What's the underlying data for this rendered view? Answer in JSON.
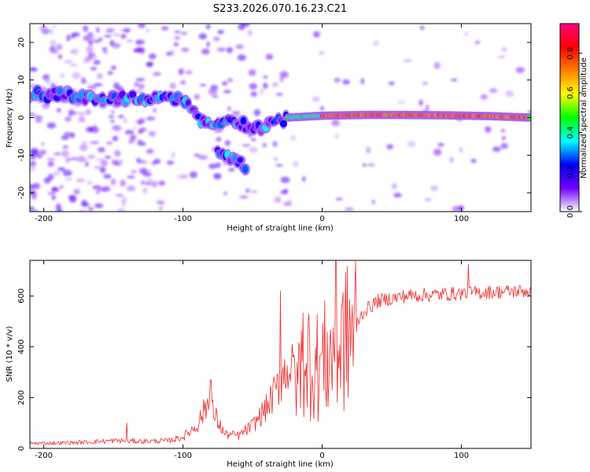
{
  "title": "S233.2026.070.16.23.C21",
  "colors": {
    "line": "#ee2b2b",
    "frame": "#000000"
  },
  "chart_data": [
    {
      "type": "heatmap",
      "xlabel": "Height of straight line (km)",
      "ylabel": "Frequency (Hz)",
      "xlim": [
        -210,
        150
      ],
      "ylim": [
        -25,
        25
      ],
      "xticks": [
        -200,
        -100,
        0,
        100
      ],
      "yticks": [
        -20,
        -10,
        0,
        10,
        20
      ],
      "colorbar": {
        "label": "Normalized spectral amplitude",
        "range": [
          0,
          0.95
        ],
        "ticks": [
          "0.0",
          "0.2",
          "0.4",
          "0.6",
          "0.8"
        ],
        "tick_values": [
          0,
          0.2,
          0.4,
          0.6,
          0.8
        ],
        "stops": [
          "#ffffff",
          "#7000ff",
          "#0000ff",
          "#00ffff",
          "#00ff00",
          "#ffff00",
          "#ff8000",
          "#ff0000",
          "#ff0080"
        ]
      },
      "ridges": [
        {
          "x": [
            -210,
            -180,
            -150,
            -120,
            -100,
            -98
          ],
          "y": [
            6,
            6,
            5,
            5,
            4.5,
            4
          ]
        },
        {
          "x": [
            -98,
            -90,
            -80,
            -70,
            -60,
            -50,
            -40,
            -30,
            -25
          ],
          "y": [
            4,
            0,
            -2,
            0,
            -1,
            -3,
            -2,
            -1,
            0
          ]
        },
        {
          "x": [
            -75,
            -65,
            -55
          ],
          "y": [
            -9,
            -11,
            -13
          ]
        },
        {
          "x": [
            -25,
            0,
            30,
            60,
            90,
            120,
            150
          ],
          "y": [
            0,
            0.5,
            0.7,
            0.7,
            0.6,
            0.4,
            0
          ]
        }
      ]
    },
    {
      "type": "line",
      "xlabel": "Height of straight line (km)",
      "ylabel": "SNR (10 * v/v)",
      "xlim": [
        -210,
        150
      ],
      "ylim": [
        0,
        740
      ],
      "xticks": [
        -200,
        -100,
        0,
        100
      ],
      "yticks": [
        0,
        200,
        400,
        600
      ],
      "trend": {
        "x": [
          -210,
          -180,
          -150,
          -130,
          -110,
          -100,
          -90,
          -82,
          -78,
          -70,
          -60,
          -50,
          -40,
          -32,
          -25,
          -18,
          -12,
          -5,
          0,
          10,
          20,
          30,
          40,
          60,
          80,
          100,
          120,
          150
        ],
        "y": [
          20,
          22,
          30,
          28,
          30,
          45,
          90,
          180,
          140,
          55,
          50,
          90,
          160,
          240,
          320,
          300,
          380,
          320,
          340,
          380,
          450,
          540,
          580,
          600,
          605,
          610,
          615,
          620
        ]
      },
      "spikes": [
        {
          "x": -140,
          "y": 100
        },
        {
          "x": -80,
          "y": 270
        },
        {
          "x": -30,
          "y": 620
        },
        {
          "x": -18,
          "y": 640
        },
        {
          "x": -10,
          "y": 130
        },
        {
          "x": 10,
          "y": 740
        },
        {
          "x": 12,
          "y": 150
        },
        {
          "x": 105,
          "y": 725
        },
        {
          "x": 105,
          "y": 455
        }
      ]
    }
  ]
}
